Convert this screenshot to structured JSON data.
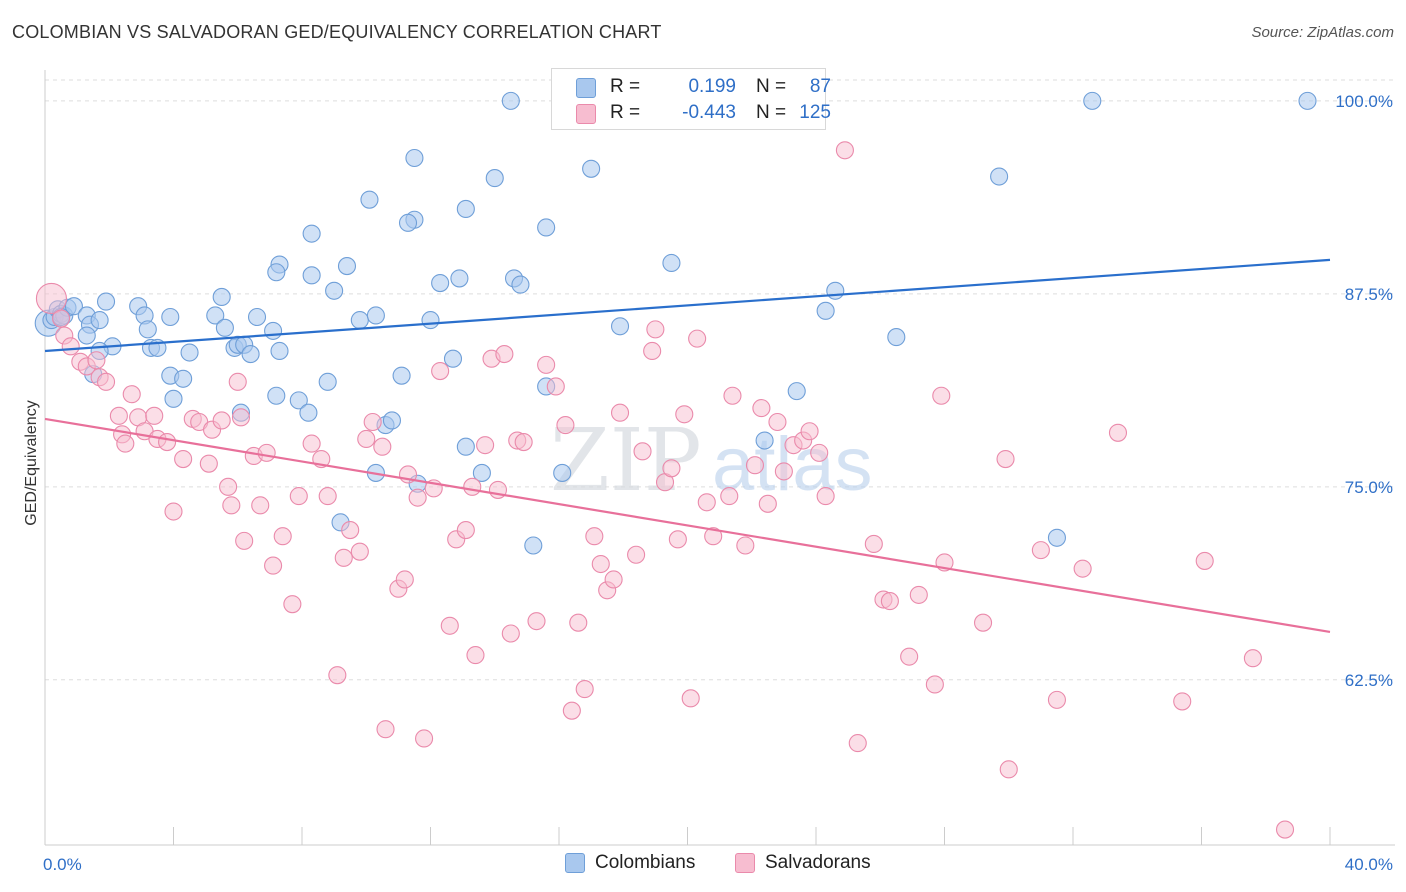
{
  "title": "COLOMBIAN VS SALVADORAN GED/EQUIVALENCY CORRELATION CHART",
  "source": "Source: ZipAtlas.com",
  "watermark": {
    "zip": "ZIP",
    "atlas": "atlas"
  },
  "colors": {
    "colombian_fill": "#a9c8ee",
    "colombian_stroke": "#6f9fd8",
    "colombian_line": "#2a6fcc",
    "salvadoran_fill": "#f7bdd0",
    "salvadoran_stroke": "#ea8aab",
    "salvadoran_line": "#e8709a",
    "axis_text": "#2f6fc7",
    "grid": "#dddddd"
  },
  "stats": [
    {
      "r_label": "R =",
      "r_value": "0.199",
      "n_label": "N =",
      "n_value": "87"
    },
    {
      "r_label": "R =",
      "r_value": "-0.443",
      "n_label": "N =",
      "n_value": "125"
    }
  ],
  "legend": {
    "colombians": "Colombians",
    "salvadorans": "Salvadorans"
  },
  "chart_data": {
    "type": "scatter",
    "title": "COLOMBIAN VS SALVADORAN GED/EQUIVALENCY CORRELATION CHART",
    "xlabel": "",
    "ylabel": "GED/Equivalency",
    "xlim": [
      0,
      40
    ],
    "ylim": [
      51.8,
      102.0
    ],
    "x_tick_labels": [
      "0.0%",
      "40.0%"
    ],
    "y_ticks": [
      62.5,
      75.0,
      87.5,
      100.0
    ],
    "y_tick_labels": [
      "62.5%",
      "75.0%",
      "87.5%",
      "100.0%"
    ],
    "grid": true,
    "legend_position": "bottom-center",
    "series": [
      {
        "name": "Colombians",
        "trend": {
          "x": [
            0,
            40
          ],
          "y": [
            83.8,
            89.7
          ]
        },
        "points": [
          [
            0.1,
            85.6
          ],
          [
            0.2,
            85.8
          ],
          [
            0.3,
            86.0
          ],
          [
            0.4,
            86.5
          ],
          [
            0.5,
            86.2
          ],
          [
            0.6,
            86.1
          ],
          [
            0.7,
            86.6
          ],
          [
            0.9,
            86.7
          ],
          [
            1.3,
            86.1
          ],
          [
            1.4,
            85.5
          ],
          [
            1.7,
            85.8
          ],
          [
            1.9,
            87.0
          ],
          [
            2.1,
            84.1
          ],
          [
            1.7,
            83.8
          ],
          [
            1.5,
            82.3
          ],
          [
            2.9,
            86.7
          ],
          [
            3.1,
            86.1
          ],
          [
            3.2,
            85.2
          ],
          [
            3.3,
            84.0
          ],
          [
            3.9,
            86.0
          ],
          [
            3.5,
            84.0
          ],
          [
            3.9,
            82.2
          ],
          [
            4.5,
            83.7
          ],
          [
            4.3,
            82.0
          ],
          [
            5.3,
            86.1
          ],
          [
            5.5,
            87.3
          ],
          [
            5.6,
            85.3
          ],
          [
            5.9,
            84.0
          ],
          [
            6.0,
            84.2
          ],
          [
            6.2,
            84.2
          ],
          [
            6.4,
            83.6
          ],
          [
            6.1,
            79.8
          ],
          [
            6.6,
            86.0
          ],
          [
            7.1,
            85.1
          ],
          [
            7.3,
            83.8
          ],
          [
            7.2,
            80.9
          ],
          [
            7.9,
            80.6
          ],
          [
            8.2,
            79.8
          ],
          [
            8.8,
            81.8
          ],
          [
            9.8,
            85.8
          ],
          [
            10.3,
            86.1
          ],
          [
            10.6,
            79.0
          ],
          [
            10.8,
            79.3
          ],
          [
            11.1,
            82.2
          ],
          [
            12.0,
            85.8
          ],
          [
            12.7,
            83.3
          ],
          [
            13.1,
            77.6
          ],
          [
            13.6,
            75.9
          ],
          [
            11.6,
            75.2
          ],
          [
            10.3,
            75.9
          ],
          [
            9.2,
            72.7
          ],
          [
            12.3,
            88.2
          ],
          [
            12.9,
            88.5
          ],
          [
            14.6,
            88.5
          ],
          [
            14.8,
            88.1
          ],
          [
            13.1,
            93.0
          ],
          [
            14.0,
            95.0
          ],
          [
            11.5,
            92.3
          ],
          [
            11.3,
            92.1
          ],
          [
            11.5,
            96.3
          ],
          [
            10.1,
            93.6
          ],
          [
            9.4,
            89.3
          ],
          [
            8.3,
            91.4
          ],
          [
            8.3,
            88.7
          ],
          [
            9.0,
            87.7
          ],
          [
            7.3,
            89.4
          ],
          [
            7.2,
            88.9
          ],
          [
            14.5,
            100.0
          ],
          [
            15.6,
            91.8
          ],
          [
            17.0,
            95.6
          ],
          [
            17.9,
            85.4
          ],
          [
            19.5,
            89.5
          ],
          [
            15.6,
            81.5
          ],
          [
            15.2,
            71.2
          ],
          [
            16.1,
            75.9
          ],
          [
            23.4,
            81.2
          ],
          [
            22.4,
            78.0
          ],
          [
            24.3,
            86.4
          ],
          [
            24.6,
            87.7
          ],
          [
            26.5,
            84.7
          ],
          [
            29.7,
            95.1
          ],
          [
            31.5,
            71.7
          ],
          [
            32.6,
            100.0
          ],
          [
            39.3,
            100.0
          ],
          [
            0.5,
            86.0
          ],
          [
            4.0,
            80.7
          ],
          [
            1.3,
            84.8
          ]
        ]
      },
      {
        "name": "Salvadorans",
        "trend": {
          "x": [
            0,
            40
          ],
          "y": [
            79.4,
            65.6
          ]
        },
        "points": [
          [
            0.2,
            87.2
          ],
          [
            0.5,
            85.9
          ],
          [
            0.6,
            84.8
          ],
          [
            0.8,
            84.1
          ],
          [
            1.1,
            83.1
          ],
          [
            1.3,
            82.8
          ],
          [
            1.6,
            83.2
          ],
          [
            1.7,
            82.1
          ],
          [
            1.9,
            81.8
          ],
          [
            2.3,
            79.6
          ],
          [
            2.4,
            78.4
          ],
          [
            2.5,
            77.8
          ],
          [
            2.9,
            79.5
          ],
          [
            2.7,
            81.0
          ],
          [
            3.1,
            78.6
          ],
          [
            3.4,
            79.6
          ],
          [
            3.5,
            78.1
          ],
          [
            3.8,
            77.9
          ],
          [
            4.0,
            73.4
          ],
          [
            4.3,
            76.8
          ],
          [
            4.6,
            79.4
          ],
          [
            4.8,
            79.2
          ],
          [
            5.1,
            76.5
          ],
          [
            5.2,
            78.7
          ],
          [
            5.5,
            79.3
          ],
          [
            5.7,
            75.0
          ],
          [
            6.0,
            81.8
          ],
          [
            6.1,
            79.5
          ],
          [
            6.2,
            71.5
          ],
          [
            6.5,
            77.0
          ],
          [
            6.7,
            73.8
          ],
          [
            6.9,
            77.2
          ],
          [
            7.1,
            69.9
          ],
          [
            7.4,
            71.8
          ],
          [
            7.7,
            67.4
          ],
          [
            7.9,
            74.4
          ],
          [
            8.3,
            77.8
          ],
          [
            8.6,
            76.8
          ],
          [
            8.8,
            74.4
          ],
          [
            9.1,
            62.8
          ],
          [
            9.3,
            70.4
          ],
          [
            9.5,
            72.2
          ],
          [
            9.8,
            70.8
          ],
          [
            10.0,
            78.1
          ],
          [
            10.2,
            79.2
          ],
          [
            10.5,
            77.6
          ],
          [
            10.6,
            59.3
          ],
          [
            11.0,
            68.4
          ],
          [
            11.2,
            69.0
          ],
          [
            11.3,
            75.8
          ],
          [
            11.6,
            74.3
          ],
          [
            11.8,
            58.7
          ],
          [
            12.1,
            74.9
          ],
          [
            12.3,
            82.5
          ],
          [
            12.6,
            66.0
          ],
          [
            12.8,
            71.6
          ],
          [
            13.1,
            72.2
          ],
          [
            13.3,
            75.0
          ],
          [
            13.4,
            64.1
          ],
          [
            13.7,
            77.7
          ],
          [
            13.9,
            83.3
          ],
          [
            14.1,
            74.8
          ],
          [
            14.3,
            83.6
          ],
          [
            14.5,
            65.5
          ],
          [
            14.7,
            78.0
          ],
          [
            14.9,
            77.9
          ],
          [
            15.3,
            66.3
          ],
          [
            15.6,
            82.9
          ],
          [
            15.9,
            81.5
          ],
          [
            16.2,
            79.0
          ],
          [
            16.4,
            60.5
          ],
          [
            16.6,
            66.2
          ],
          [
            16.8,
            61.9
          ],
          [
            17.1,
            71.8
          ],
          [
            17.3,
            70.0
          ],
          [
            17.5,
            68.3
          ],
          [
            17.7,
            69.0
          ],
          [
            17.9,
            79.8
          ],
          [
            18.4,
            70.6
          ],
          [
            18.6,
            77.3
          ],
          [
            18.9,
            83.8
          ],
          [
            19.0,
            85.2
          ],
          [
            19.3,
            75.3
          ],
          [
            19.5,
            76.2
          ],
          [
            19.7,
            71.6
          ],
          [
            19.9,
            79.7
          ],
          [
            20.1,
            61.3
          ],
          [
            20.3,
            84.6
          ],
          [
            20.6,
            74.0
          ],
          [
            20.8,
            71.8
          ],
          [
            21.3,
            74.4
          ],
          [
            21.4,
            80.9
          ],
          [
            21.8,
            71.2
          ],
          [
            22.1,
            76.4
          ],
          [
            22.3,
            80.1
          ],
          [
            22.5,
            73.9
          ],
          [
            22.8,
            79.2
          ],
          [
            23.0,
            76.0
          ],
          [
            23.3,
            77.7
          ],
          [
            23.6,
            78.0
          ],
          [
            23.8,
            78.6
          ],
          [
            24.1,
            77.2
          ],
          [
            24.3,
            74.4
          ],
          [
            24.9,
            96.8
          ],
          [
            25.3,
            58.4
          ],
          [
            25.8,
            71.3
          ],
          [
            26.1,
            67.7
          ],
          [
            26.3,
            67.6
          ],
          [
            26.9,
            64.0
          ],
          [
            27.2,
            68.0
          ],
          [
            27.7,
            62.2
          ],
          [
            27.9,
            80.9
          ],
          [
            28.0,
            70.1
          ],
          [
            29.2,
            66.2
          ],
          [
            30.0,
            56.7
          ],
          [
            31.0,
            70.9
          ],
          [
            31.5,
            61.2
          ],
          [
            32.3,
            69.7
          ],
          [
            33.4,
            78.5
          ],
          [
            35.4,
            61.1
          ],
          [
            36.1,
            70.2
          ],
          [
            37.6,
            63.9
          ],
          [
            38.6,
            52.8
          ],
          [
            29.9,
            76.8
          ],
          [
            5.8,
            73.8
          ]
        ]
      }
    ]
  }
}
